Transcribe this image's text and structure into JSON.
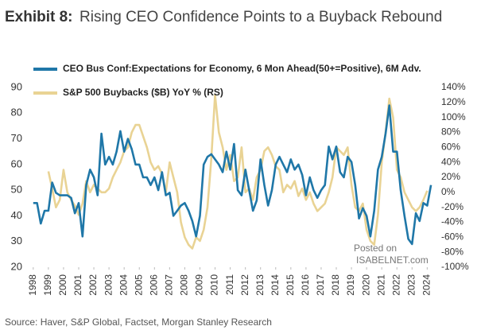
{
  "chart_data": {
    "type": "line",
    "title_prefix": "Exhibit 8:",
    "title": "Rising CEO Confidence Points to a Buyback Rebound",
    "source": "Source: Haver, S&P Global, Factset, Morgan Stanley Research",
    "watermark": [
      "Posted on",
      "ISABELNET.com"
    ],
    "x": [
      1998,
      1998.25,
      1998.5,
      1998.75,
      1999,
      1999.25,
      1999.5,
      1999.75,
      2000,
      2000.25,
      2000.5,
      2000.75,
      2001,
      2001.25,
      2001.5,
      2001.75,
      2002,
      2002.25,
      2002.5,
      2002.75,
      2003,
      2003.25,
      2003.5,
      2003.75,
      2004,
      2004.25,
      2004.5,
      2004.75,
      2005,
      2005.25,
      2005.5,
      2005.75,
      2006,
      2006.25,
      2006.5,
      2006.75,
      2007,
      2007.25,
      2007.5,
      2007.75,
      2008,
      2008.25,
      2008.5,
      2008.75,
      2009,
      2009.25,
      2009.5,
      2009.75,
      2010,
      2010.25,
      2010.5,
      2010.75,
      2011,
      2011.25,
      2011.5,
      2011.75,
      2012,
      2012.25,
      2012.5,
      2012.75,
      2013,
      2013.25,
      2013.5,
      2013.75,
      2014,
      2014.25,
      2014.5,
      2014.75,
      2015,
      2015.25,
      2015.5,
      2015.75,
      2016,
      2016.25,
      2016.5,
      2016.75,
      2017,
      2017.25,
      2017.5,
      2017.75,
      2018,
      2018.25,
      2018.5,
      2018.75,
      2019,
      2019.25,
      2019.5,
      2019.75,
      2020,
      2020.25,
      2020.5,
      2020.75,
      2021,
      2021.25,
      2021.5,
      2021.75,
      2022,
      2022.25,
      2022.5,
      2022.75,
      2023,
      2023.25,
      2023.5,
      2023.75,
      2024,
      2024.25
    ],
    "series": [
      {
        "name": "S&P 500 Buybacks ($B) YoY % (RS)",
        "color": "#e9d394",
        "axis": "y2",
        "values": [
          null,
          null,
          null,
          null,
          28,
          5,
          -20,
          -10,
          30,
          0,
          -10,
          -18,
          -30,
          -15,
          15,
          0,
          10,
          5,
          0,
          0,
          5,
          20,
          30,
          40,
          55,
          60,
          80,
          90,
          90,
          75,
          60,
          40,
          30,
          35,
          25,
          0,
          40,
          20,
          0,
          -40,
          -60,
          -70,
          -75,
          -60,
          -65,
          -50,
          -20,
          45,
          130,
          80,
          60,
          30,
          50,
          15,
          20,
          60,
          0,
          5,
          -10,
          20,
          30,
          55,
          60,
          50,
          35,
          30,
          0,
          10,
          5,
          15,
          -5,
          5,
          -10,
          0,
          -15,
          -25,
          -20,
          -15,
          0,
          20,
          60,
          55,
          50,
          60,
          10,
          -20,
          -25,
          -15,
          -50,
          -65,
          -70,
          -30,
          40,
          80,
          125,
          100,
          30,
          20,
          0,
          -10,
          -20,
          -25,
          -20,
          -10,
          2,
          null
        ]
      },
      {
        "name": "CEO Bus Conf:Expectations for Economy, 6 Mon Ahead(50+=Positive), 6M Adv.",
        "color": "#1f77a8",
        "values": [
          45,
          45,
          37,
          42,
          42,
          53,
          49,
          48,
          48,
          48,
          47,
          41,
          45,
          32,
          52,
          58,
          55,
          48,
          72,
          60,
          63,
          60,
          65,
          73,
          65,
          70,
          66,
          60,
          60,
          55,
          55,
          52,
          55,
          50,
          57,
          48,
          49,
          40,
          42,
          44,
          45,
          42,
          38,
          32,
          40,
          60,
          63,
          64,
          62,
          60,
          57,
          65,
          58,
          68,
          50,
          48,
          58,
          50,
          42,
          46,
          62,
          52,
          44,
          50,
          60,
          63,
          60,
          57,
          62,
          58,
          60,
          56,
          48,
          55,
          50,
          47,
          50,
          52,
          67,
          62,
          67,
          57,
          55,
          63,
          61,
          52,
          39,
          43,
          40,
          32,
          42,
          58,
          63,
          72,
          83,
          65,
          65,
          50,
          40,
          31,
          29,
          41,
          38,
          45,
          44,
          52
        ]
      }
    ],
    "xlim": [
      1997.8,
      2024.4
    ],
    "xticks": [
      1998,
      1999,
      2000,
      2001,
      2002,
      2003,
      2004,
      2005,
      2006,
      2007,
      2008,
      2009,
      2010,
      2011,
      2012,
      2013,
      2014,
      2015,
      2016,
      2017,
      2018,
      2019,
      2020,
      2021,
      2022,
      2023,
      2024
    ],
    "ylim": [
      20,
      90
    ],
    "yticks": [
      20,
      30,
      40,
      50,
      60,
      70,
      80,
      90
    ],
    "y2lim": [
      -100,
      140
    ],
    "y2ticks": [
      {
        "value": -100,
        "label": "-100%"
      },
      {
        "value": -80,
        "label": "-80%"
      },
      {
        "value": -60,
        "label": "-60%"
      },
      {
        "value": -40,
        "label": "-40%"
      },
      {
        "value": -20,
        "label": "-20%"
      },
      {
        "value": 0,
        "label": "0%"
      },
      {
        "value": 20,
        "label": "20%"
      },
      {
        "value": 40,
        "label": "40%"
      },
      {
        "value": 60,
        "label": "60%"
      },
      {
        "value": 80,
        "label": "80%"
      },
      {
        "value": 100,
        "label": "100%"
      },
      {
        "value": 120,
        "label": "120%"
      },
      {
        "value": 140,
        "label": "140%"
      }
    ],
    "legend": [
      "chart_data.series.1",
      "chart_data.series.0"
    ],
    "grid": false
  }
}
